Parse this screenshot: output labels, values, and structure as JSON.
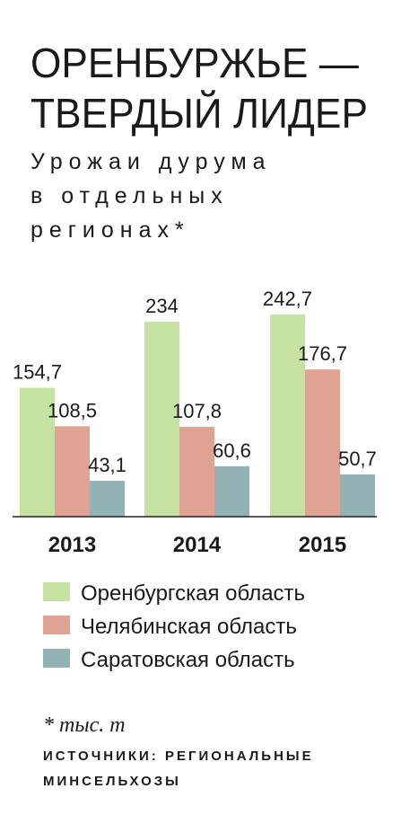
{
  "chart_data": {
    "type": "bar",
    "title": [
      "ОРЕНБУРЖЬЕ —",
      "ТВЕРДЫЙ ЛИДЕР"
    ],
    "subtitle": [
      "Урожаи дурума",
      "в отдельных",
      "регионах*"
    ],
    "categories": [
      "2013",
      "2014",
      "2015"
    ],
    "series": [
      {
        "name": "Оренбургская область",
        "color": "#c6e2a1",
        "values": [
          154.7,
          234,
          242.7
        ],
        "value_labels": [
          "154,7",
          "234",
          "242,7"
        ]
      },
      {
        "name": "Челябинская область",
        "color": "#e0a292",
        "values": [
          108.5,
          107.8,
          176.7
        ],
        "value_labels": [
          "108,5",
          "107,8",
          "176,7"
        ]
      },
      {
        "name": "Саратовская область",
        "color": "#92b3b6",
        "values": [
          43.1,
          60.6,
          50.7
        ],
        "value_labels": [
          "43,1",
          "60,6",
          "50,7"
        ]
      }
    ],
    "footnote": "* тыс. т",
    "source": [
      "ИСТОЧНИКИ: РЕГИОНАЛЬНЫЕ",
      "МИНСЕЛЬХОЗЫ"
    ]
  }
}
